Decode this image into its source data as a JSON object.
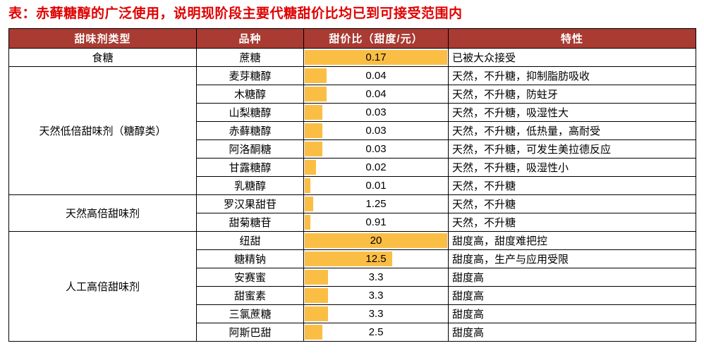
{
  "title": "表：赤藓糖醇的广泛使用，说明现阶段主要代糖甜价比均已到可接受范围内",
  "colors": {
    "title": "#E00000",
    "header_bg": "#A93B32",
    "bar": "#FBBE45",
    "border": "#000000"
  },
  "table": {
    "headers": [
      "甜味剂类型",
      "品种",
      "甜价比（甜度/元）",
      "特性"
    ],
    "groups": [
      {
        "type": "食糖",
        "rows": [
          {
            "name": "蔗糖",
            "value": "0.17",
            "bar_pct": 100,
            "trait": "已被大众接受"
          }
        ]
      },
      {
        "type": "天然低倍甜味剂（糖醇类）",
        "rows": [
          {
            "name": "麦芽糖醇",
            "value": "0.04",
            "bar_pct": 16,
            "trait": "天然，不升糖，抑制脂肪吸收"
          },
          {
            "name": "木糖醇",
            "value": "0.04",
            "bar_pct": 16,
            "trait": "天然，不升糖，防蛀牙"
          },
          {
            "name": "山梨糖醇",
            "value": "0.03",
            "bar_pct": 13,
            "trait": "天然，不升糖，吸湿性大"
          },
          {
            "name": "赤藓糖醇",
            "value": "0.03",
            "bar_pct": 13,
            "trait": "天然，不升糖，低热量，高耐受"
          },
          {
            "name": "阿洛酮糖",
            "value": "0.03",
            "bar_pct": 13,
            "trait": "天然，不升糖，可发生美拉德反应"
          },
          {
            "name": "甘露糖醇",
            "value": "0.02",
            "bar_pct": 9,
            "trait": "天然，不升糖，吸湿性小"
          },
          {
            "name": "乳糖醇",
            "value": "0.01",
            "bar_pct": 5,
            "trait": "天然，不升糖"
          }
        ]
      },
      {
        "type": "天然高倍甜味剂",
        "rows": [
          {
            "name": "罗汉果甜苷",
            "value": "1.25",
            "bar_pct": 7,
            "trait": "天然，不升糖"
          },
          {
            "name": "甜菊糖苷",
            "value": "0.91",
            "bar_pct": 5,
            "trait": "天然，不升糖"
          }
        ]
      },
      {
        "type": "人工高倍甜味剂",
        "rows": [
          {
            "name": "纽甜",
            "value": "20",
            "bar_pct": 100,
            "trait": "甜度高，甜度难把控"
          },
          {
            "name": "糖精钠",
            "value": "12.5",
            "bar_pct": 62,
            "trait": "甜度高，生产与应用受限"
          },
          {
            "name": "安赛蜜",
            "value": "3.3",
            "bar_pct": 17,
            "trait": "甜度高"
          },
          {
            "name": "甜蜜素",
            "value": "3.3",
            "bar_pct": 17,
            "trait": "甜度高"
          },
          {
            "name": "三氯蔗糖",
            "value": "3.3",
            "bar_pct": 17,
            "trait": "甜度高"
          },
          {
            "name": "阿斯巴甜",
            "value": "2.5",
            "bar_pct": 13,
            "trait": "甜度高"
          }
        ]
      }
    ]
  },
  "chart_data": {
    "type": "table",
    "title": "表：赤藓糖醇的广泛使用，说明现阶段主要代糖甜价比均已到可接受范围内",
    "columns": [
      "甜味剂类型",
      "品种",
      "甜价比（甜度/元）",
      "特性"
    ],
    "bar_column": "甜价比（甜度/元）",
    "bar_color": "#FBBE45",
    "rows": [
      [
        "食糖",
        "蔗糖",
        0.17,
        "已被大众接受"
      ],
      [
        "天然低倍甜味剂（糖醇类）",
        "麦芽糖醇",
        0.04,
        "天然，不升糖，抑制脂肪吸收"
      ],
      [
        "天然低倍甜味剂（糖醇类）",
        "木糖醇",
        0.04,
        "天然，不升糖，防蛀牙"
      ],
      [
        "天然低倍甜味剂（糖醇类）",
        "山梨糖醇",
        0.03,
        "天然，不升糖，吸湿性大"
      ],
      [
        "天然低倍甜味剂（糖醇类）",
        "赤藓糖醇",
        0.03,
        "天然，不升糖，低热量，高耐受"
      ],
      [
        "天然低倍甜味剂（糖醇类）",
        "阿洛酮糖",
        0.03,
        "天然，不升糖，可发生美拉德反应"
      ],
      [
        "天然低倍甜味剂（糖醇类）",
        "甘露糖醇",
        0.02,
        "天然，不升糖，吸湿性小"
      ],
      [
        "天然低倍甜味剂（糖醇类）",
        "乳糖醇",
        0.01,
        "天然，不升糖"
      ],
      [
        "天然高倍甜味剂",
        "罗汉果甜苷",
        1.25,
        "天然，不升糖"
      ],
      [
        "天然高倍甜味剂",
        "甜菊糖苷",
        0.91,
        "天然，不升糖"
      ],
      [
        "人工高倍甜味剂",
        "纽甜",
        20,
        "甜度高，甜度难把控"
      ],
      [
        "人工高倍甜味剂",
        "糖精钠",
        12.5,
        "甜度高，生产与应用受限"
      ],
      [
        "人工高倍甜味剂",
        "安赛蜜",
        3.3,
        "甜度高"
      ],
      [
        "人工高倍甜味剂",
        "甜蜜素",
        3.3,
        "甜度高"
      ],
      [
        "人工高倍甜味剂",
        "三氯蔗糖",
        3.3,
        "甜度高"
      ],
      [
        "人工高倍甜味剂",
        "阿斯巴甜",
        2.5,
        "甜度高"
      ]
    ]
  }
}
